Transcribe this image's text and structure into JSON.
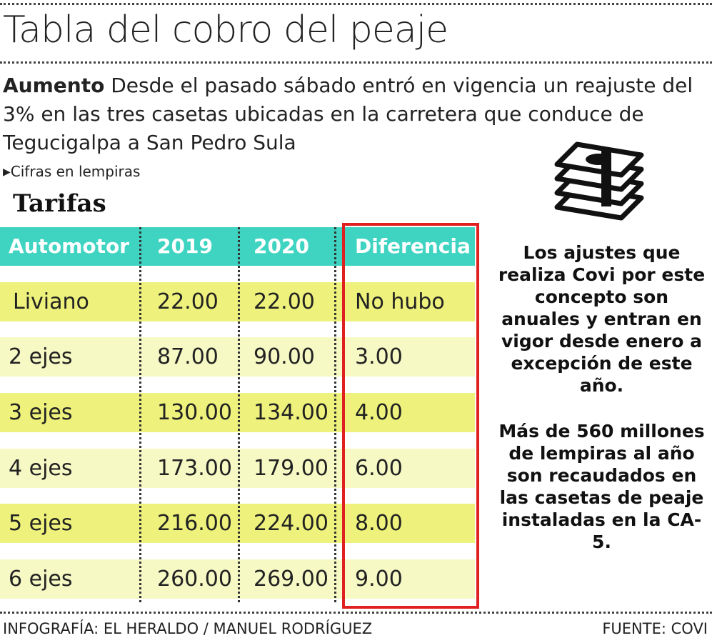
{
  "header": {
    "title": "Tabla del cobro del peaje"
  },
  "intro": {
    "lead": "Aumento",
    "text": "Desde el pasado sábado entró en vigencia un reajuste del 3% en las tres casetas ubicadas en la carretera que conduce de Tegucigalpa a San Pedro Sula"
  },
  "note": "Cifras en lempiras",
  "table": {
    "title": "Tarifas",
    "columns": [
      "Automotor",
      "2019",
      "2020",
      "Diferencia"
    ],
    "rows": [
      [
        "Liviano",
        "22.00",
        "22.00",
        "No hubo"
      ],
      [
        "2 ejes",
        "87.00",
        "90.00",
        "3.00"
      ],
      [
        "3 ejes",
        "130.00",
        "134.00",
        "4.00"
      ],
      [
        "4 ejes",
        "173.00",
        "179.00",
        "6.00"
      ],
      [
        "5 ejes",
        "216.00",
        "224.00",
        "8.00"
      ],
      [
        "6 ejes",
        "260.00",
        "269.00",
        "9.00"
      ]
    ]
  },
  "sidebar": [
    "Los ajustes que realiza Covi por este concepto son anuales y entran en vigor desde enero a excepción de este año.",
    "Más de 560 millones de lempiras al año son recaudados en las casetas de peaje instaladas en la CA-5."
  ],
  "footer": {
    "credit": "INFOGRAFÍA: EL HERALDO / MANUEL RODRÍGUEZ",
    "source": "FUENTE: COVI"
  }
}
